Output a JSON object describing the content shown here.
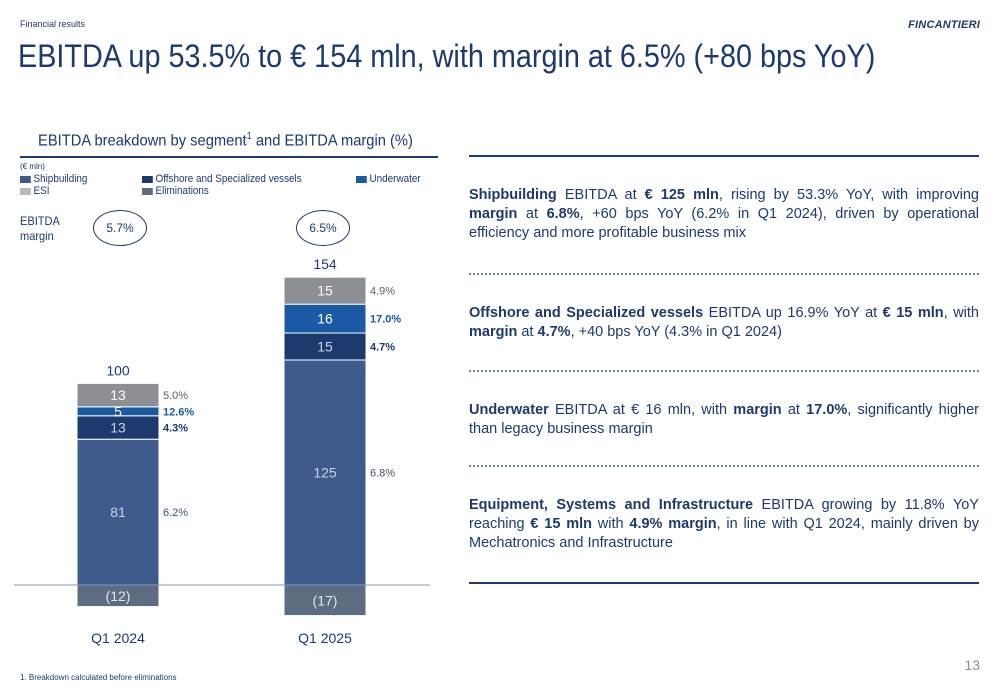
{
  "header": {
    "section": "Financial results",
    "logo": "FINCANTIERI",
    "title": "EBITDA up 53.5% to € 154 mln, with margin at 6.5% (+80 bps YoY)"
  },
  "chart_title": {
    "text": "EBITDA breakdown by segment",
    "sup": "1",
    "rest": " and EBITDA margin (%)"
  },
  "unit_note": "(€ mln)",
  "legend": [
    {
      "label": "Shipbuilding",
      "color": "#3f5b8e"
    },
    {
      "label": "Offshore and Specialized vessels",
      "color": "#1c3a6e"
    },
    {
      "label": "Underwater",
      "color": "#1a5aa5"
    },
    {
      "label": "ESI",
      "color": "#b7b9bd"
    },
    {
      "label": "Eliminations",
      "color": "#5d6c80"
    }
  ],
  "ebitda_margin_label": [
    "EBITDA",
    "margin"
  ],
  "chart_data": {
    "type": "bar",
    "stacked": true,
    "categories": [
      "Q1 2024",
      "Q1 2025"
    ],
    "series": [
      {
        "name": "Shipbuilding",
        "values": [
          81,
          125
        ],
        "margins": [
          "6.2%",
          "6.8%"
        ],
        "color": "#3f5b8e",
        "label_color": "#c9d3e3",
        "margin_color": "#3f4e6b"
      },
      {
        "name": "Offshore and Specialized vessels",
        "values": [
          13,
          15
        ],
        "margins": [
          "4.3%",
          "4.7%"
        ],
        "color": "#1c3a6e",
        "label_color": "#c9d3e3",
        "margin_color": "#1c3a6e"
      },
      {
        "name": "Underwater",
        "values": [
          5,
          16
        ],
        "margins": [
          "12.6%",
          "17.0%"
        ],
        "color": "#1a5aa5",
        "label_color": "#ffffff",
        "margin_color": "#1a5aa5"
      },
      {
        "name": "ESI",
        "values": [
          13,
          15
        ],
        "margins": [
          "5.0%",
          "4.9%"
        ],
        "color": "#8c8f94",
        "label_color": "#ffffff",
        "margin_color": "#5b5f66"
      },
      {
        "name": "Eliminations",
        "values": [
          -12,
          -17
        ],
        "labels": [
          "(12)",
          "(17)"
        ],
        "color": "#5d6c80",
        "label_color": "#e2e6ee"
      }
    ],
    "totals": [
      100,
      154
    ],
    "ebitda_margin": [
      "5.7%",
      "6.5%"
    ]
  },
  "commentary": [
    {
      "parts": [
        {
          "t": "Shipbuilding",
          "b": true
        },
        {
          "t": " EBITDA at ",
          "b": false
        },
        {
          "t": "€ 125 mln",
          "b": true
        },
        {
          "t": ", rising by 53.3% YoY, with improving ",
          "b": false
        },
        {
          "t": "margin",
          "b": true
        },
        {
          "t": " at ",
          "b": false
        },
        {
          "t": "6.8%",
          "b": true
        },
        {
          "t": ", +60 bps YoY (6.2% in Q1 2024), driven by operational efficiency and more profitable business mix",
          "b": false
        }
      ]
    },
    {
      "parts": [
        {
          "t": "Offshore and Specialized vessels",
          "b": true
        },
        {
          "t": " EBITDA up 16.9% YoY at ",
          "b": false
        },
        {
          "t": "€ 15 mln",
          "b": true
        },
        {
          "t": ", with ",
          "b": false
        },
        {
          "t": "margin",
          "b": true
        },
        {
          "t": " at ",
          "b": false
        },
        {
          "t": "4.7%",
          "b": true
        },
        {
          "t": ", +40 bps YoY (4.3% in Q1 2024)",
          "b": false
        }
      ]
    },
    {
      "parts": [
        {
          "t": "Underwater",
          "b": true
        },
        {
          "t": " EBITDA at € 16 mln, with ",
          "b": false
        },
        {
          "t": "margin",
          "b": true
        },
        {
          "t": " at ",
          "b": false
        },
        {
          "t": "17.0%",
          "b": true
        },
        {
          "t": ", significantly higher than legacy business margin",
          "b": false
        }
      ]
    },
    {
      "parts": [
        {
          "t": "Equipment, Systems and Infrastructure",
          "b": true
        },
        {
          "t": " EBITDA growing by 11.8% YoY reaching ",
          "b": false
        },
        {
          "t": "€ 15 mln",
          "b": true
        },
        {
          "t": " with ",
          "b": false
        },
        {
          "t": "4.9% margin",
          "b": true
        },
        {
          "t": ", in line with Q1 2024, mainly driven by Mechatronics and Infrastructure",
          "b": false
        }
      ]
    }
  ],
  "footnote": "1.  Breakdown calculated before eliminations",
  "page_number": "13"
}
